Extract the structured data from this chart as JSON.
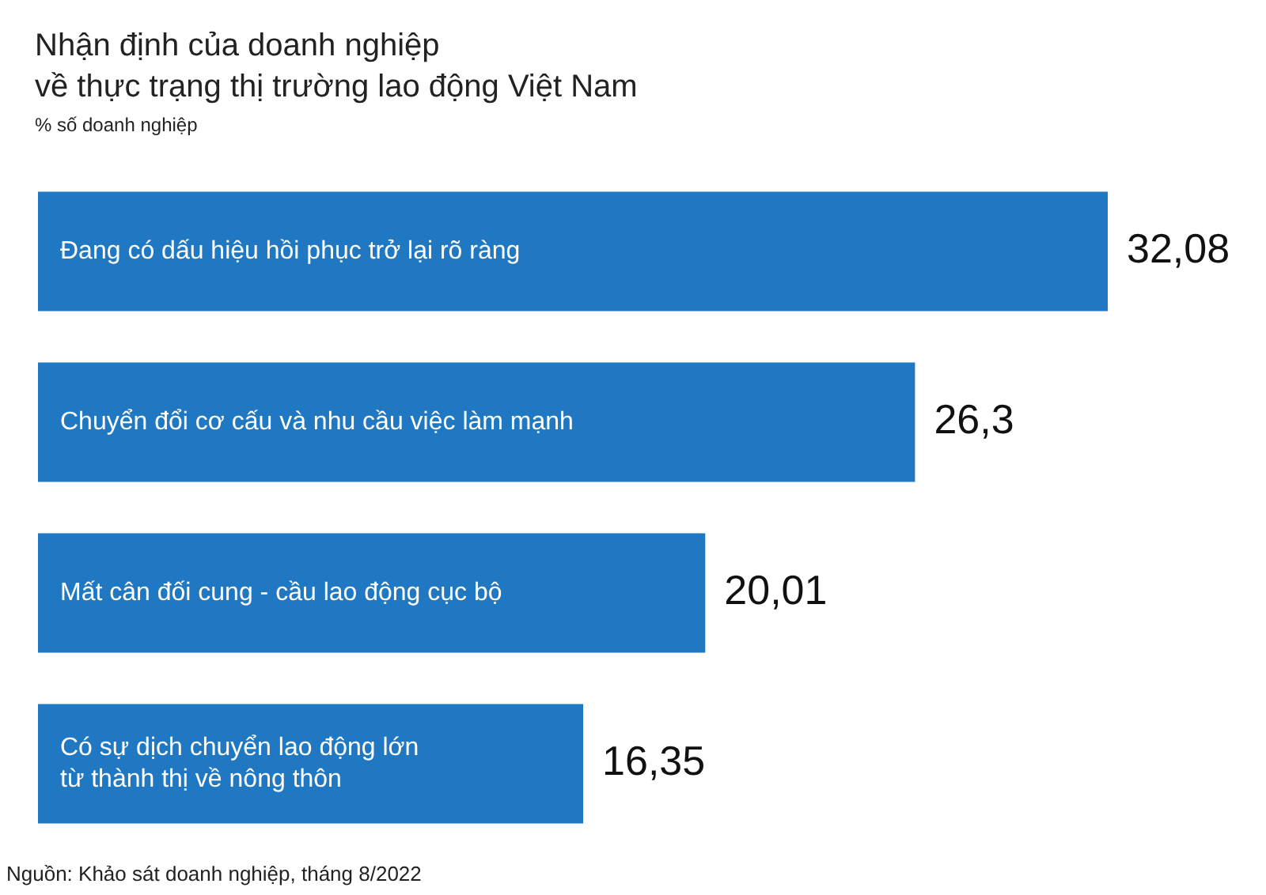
{
  "chart_data": {
    "type": "bar",
    "orientation": "horizontal",
    "title": "Nhận định của doanh nghiệp\nvề thực trạng thị trường lao động Việt Nam",
    "subtitle": "% số doanh nghiệp",
    "categories": [
      "Đang có dấu hiệu hồi phục trở lại rõ ràng",
      "Chuyển đổi cơ cấu và nhu cầu việc làm mạnh",
      "Mất cân đối cung - cầu lao động cục bộ",
      "Có sự dịch chuyển lao động lớn\ntừ thành thị về nông thôn"
    ],
    "values": [
      32.08,
      26.3,
      20.01,
      16.35
    ],
    "value_labels": [
      "32,08",
      "26,3",
      "20,01",
      "16,35"
    ],
    "color": "#1f78c1",
    "legend": false,
    "tick_labels": "y",
    "annotations": [
      "Nguồn: Khảo sát doanh nghiệp, tháng 8/2022"
    ]
  }
}
